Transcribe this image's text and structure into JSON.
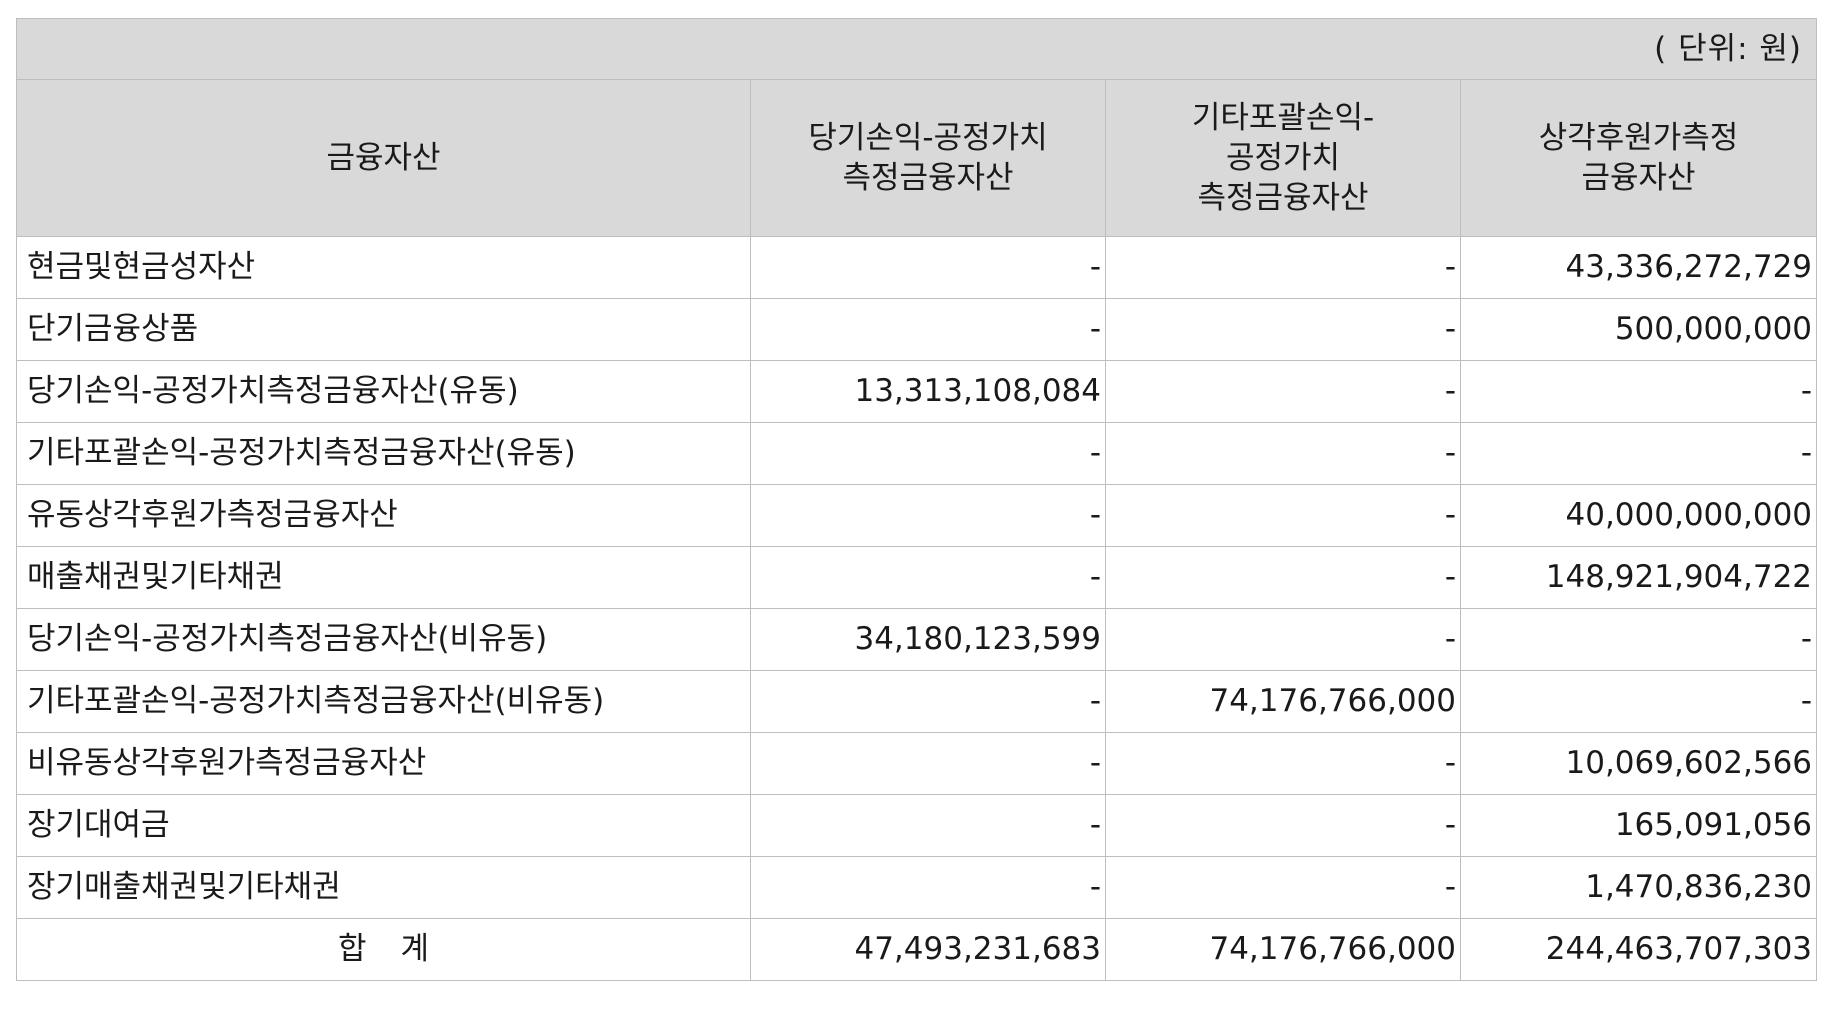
{
  "unit_label": "( 단위: 원)",
  "headers": {
    "asset": "금융자산",
    "fvpl": [
      "당기손익-공정가치",
      "측정금융자산"
    ],
    "fvoci": [
      "기타포괄손익-",
      "공정가치",
      "측정금융자산"
    ],
    "amortized": [
      "상각후원가측정",
      "금융자산"
    ]
  },
  "rows": [
    {
      "label": "현금및현금성자산",
      "fvpl": "-",
      "fvoci": "-",
      "amortized": "43,336,272,729"
    },
    {
      "label": "단기금융상품",
      "fvpl": "-",
      "fvoci": "-",
      "amortized": "500,000,000"
    },
    {
      "label": "당기손익-공정가치측정금융자산(유동)",
      "fvpl": "13,313,108,084",
      "fvoci": "-",
      "amortized": "-"
    },
    {
      "label": "기타포괄손익-공정가치측정금융자산(유동)",
      "fvpl": "-",
      "fvoci": "-",
      "amortized": "-"
    },
    {
      "label": "유동상각후원가측정금융자산",
      "fvpl": "-",
      "fvoci": "-",
      "amortized": "40,000,000,000"
    },
    {
      "label": "매출채권및기타채권",
      "fvpl": "-",
      "fvoci": "-",
      "amortized": "148,921,904,722"
    },
    {
      "label": "당기손익-공정가치측정금융자산(비유동)",
      "fvpl": "34,180,123,599",
      "fvoci": "-",
      "amortized": "-"
    },
    {
      "label": "기타포괄손익-공정가치측정금융자산(비유동)",
      "fvpl": "-",
      "fvoci": "74,176,766,000",
      "amortized": "-"
    },
    {
      "label": "비유동상각후원가측정금융자산",
      "fvpl": "-",
      "fvoci": "-",
      "amortized": "10,069,602,566"
    },
    {
      "label": "장기대여금",
      "fvpl": "-",
      "fvoci": "-",
      "amortized": "165,091,056"
    },
    {
      "label": "장기매출채권및기타채권",
      "fvpl": "-",
      "fvoci": "-",
      "amortized": "1,470,836,230"
    }
  ],
  "total": {
    "label": "합계",
    "fvpl": "47,493,231,683",
    "fvoci": "74,176,766,000",
    "amortized": "244,463,707,303"
  }
}
